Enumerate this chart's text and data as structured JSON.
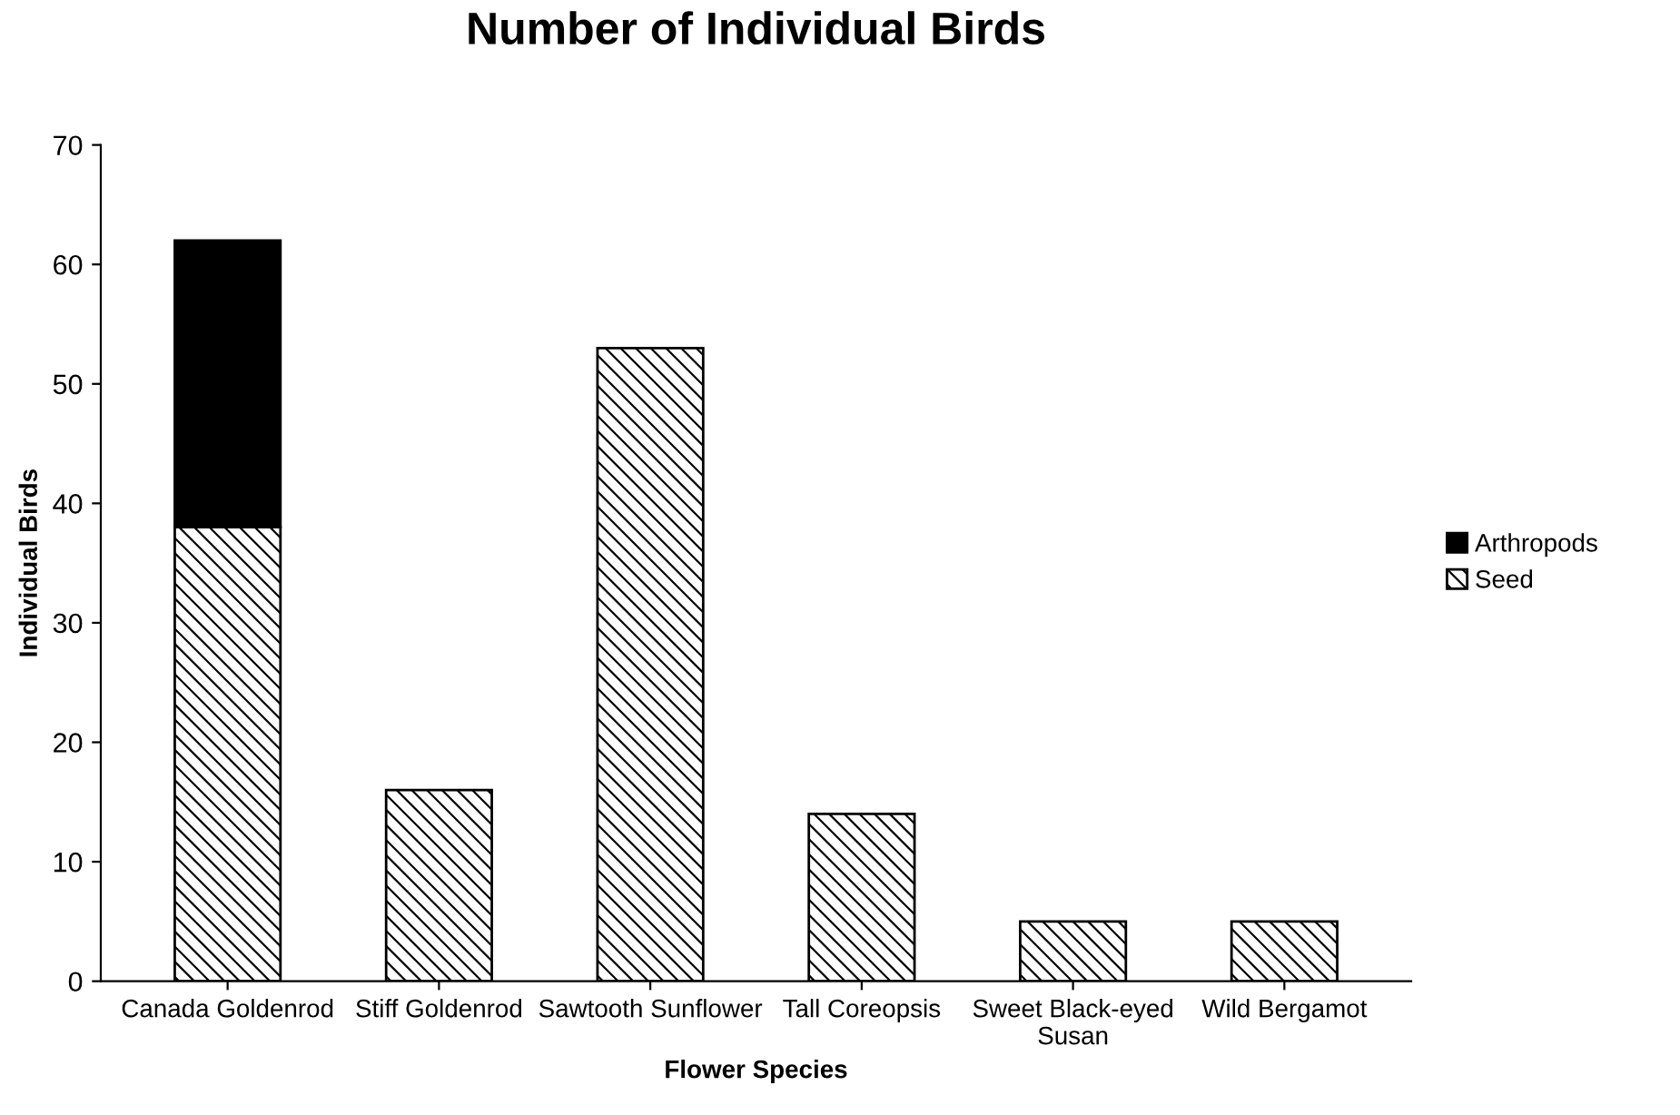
{
  "chart_data": {
    "type": "bar",
    "title": "Number of Individual Birds",
    "xlabel": "Flower Species",
    "ylabel": "Individual Birds",
    "categories": [
      "Canada Goldenrod",
      "Stiff Goldenrod",
      "Sawtooth Sunflower",
      "Tall Coreopsis",
      "Sweet Black-eyed\nSusan",
      "Wild Bergamot"
    ],
    "stacked": true,
    "series": [
      {
        "name": "Seed",
        "color": "#000000",
        "values": [
          38,
          16,
          53,
          14,
          5,
          5
        ]
      },
      {
        "name": "Arthropods",
        "color": "#000000",
        "values": [
          24,
          null,
          null,
          null,
          null,
          null
        ]
      }
    ],
    "ylim": [
      0,
      70
    ],
    "yticks": [
      0,
      10,
      20,
      30,
      40,
      50,
      60,
      70
    ],
    "grid": false,
    "legend": "right"
  }
}
